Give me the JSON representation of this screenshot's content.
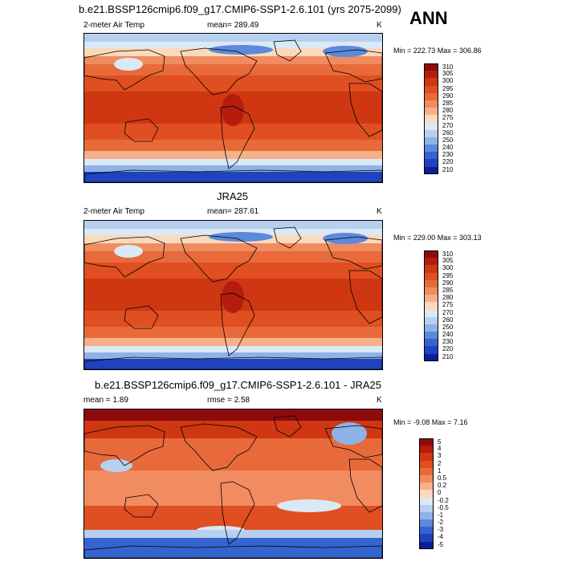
{
  "panels": [
    {
      "title": "b.e21.BSSP126cmip6.f09_g17.CMIP6-SSP1-2.6.101 (yrs 2075-2099)",
      "left_label": "2-meter Air Temp",
      "center_label": "mean= 289.49",
      "units": "K",
      "minmax": "Min = 222.73 Max = 306.86",
      "colorbar_labels": [
        "310",
        "305",
        "300",
        "295",
        "290",
        "285",
        "280",
        "275",
        "270",
        "260",
        "250",
        "240",
        "230",
        "220",
        "210"
      ],
      "colorbar_colors": [
        "#8e0b0b",
        "#b51c0e",
        "#cf3712",
        "#df4f21",
        "#e86a3b",
        "#f08c60",
        "#f6b08a",
        "#fbd9bd",
        "#dbe8f6",
        "#b8d0ef",
        "#8fb2e6",
        "#5d89da",
        "#3563d0",
        "#1f42bd",
        "#0e1e99"
      ],
      "map_style": "tas"
    },
    {
      "title": "JRA25",
      "left_label": "2-meter Air Temp",
      "center_label": "mean= 287.61",
      "units": "K",
      "minmax": "Min = 229.00 Max = 303.13",
      "colorbar_labels": [
        "310",
        "305",
        "300",
        "295",
        "290",
        "285",
        "280",
        "275",
        "270",
        "260",
        "250",
        "240",
        "230",
        "220",
        "210"
      ],
      "colorbar_colors": [
        "#8e0b0b",
        "#b51c0e",
        "#cf3712",
        "#df4f21",
        "#e86a3b",
        "#f08c60",
        "#f6b08a",
        "#fbd9bd",
        "#dbe8f6",
        "#b8d0ef",
        "#8fb2e6",
        "#5d89da",
        "#3563d0",
        "#1f42bd",
        "#0e1e99"
      ],
      "map_style": "tas"
    },
    {
      "title": "b.e21.BSSP126cmip6.f09_g17.CMIP6-SSP1-2.6.101 - JRA25",
      "left_label": "mean =   1.89",
      "center_label": "rmse =   2.58",
      "units": "K",
      "minmax": "Min =  -9.08 Max =   7.16",
      "colorbar_labels": [
        "5",
        "4",
        "3",
        "2",
        "1",
        "0.5",
        "0.2",
        "0",
        "-0.2",
        "-0.5",
        "-1",
        "-2",
        "-3",
        "-4",
        "-5"
      ],
      "colorbar_colors": [
        "#8e0b0b",
        "#b51c0e",
        "#cf3712",
        "#df4f21",
        "#e86a3b",
        "#f08c60",
        "#f6b08a",
        "#fbd9bd",
        "#dbe8f6",
        "#b8d0ef",
        "#8fb2e6",
        "#5d89da",
        "#3563d0",
        "#1f42bd",
        "#0e1e99"
      ],
      "map_style": "diff"
    }
  ],
  "season": "ANN"
}
